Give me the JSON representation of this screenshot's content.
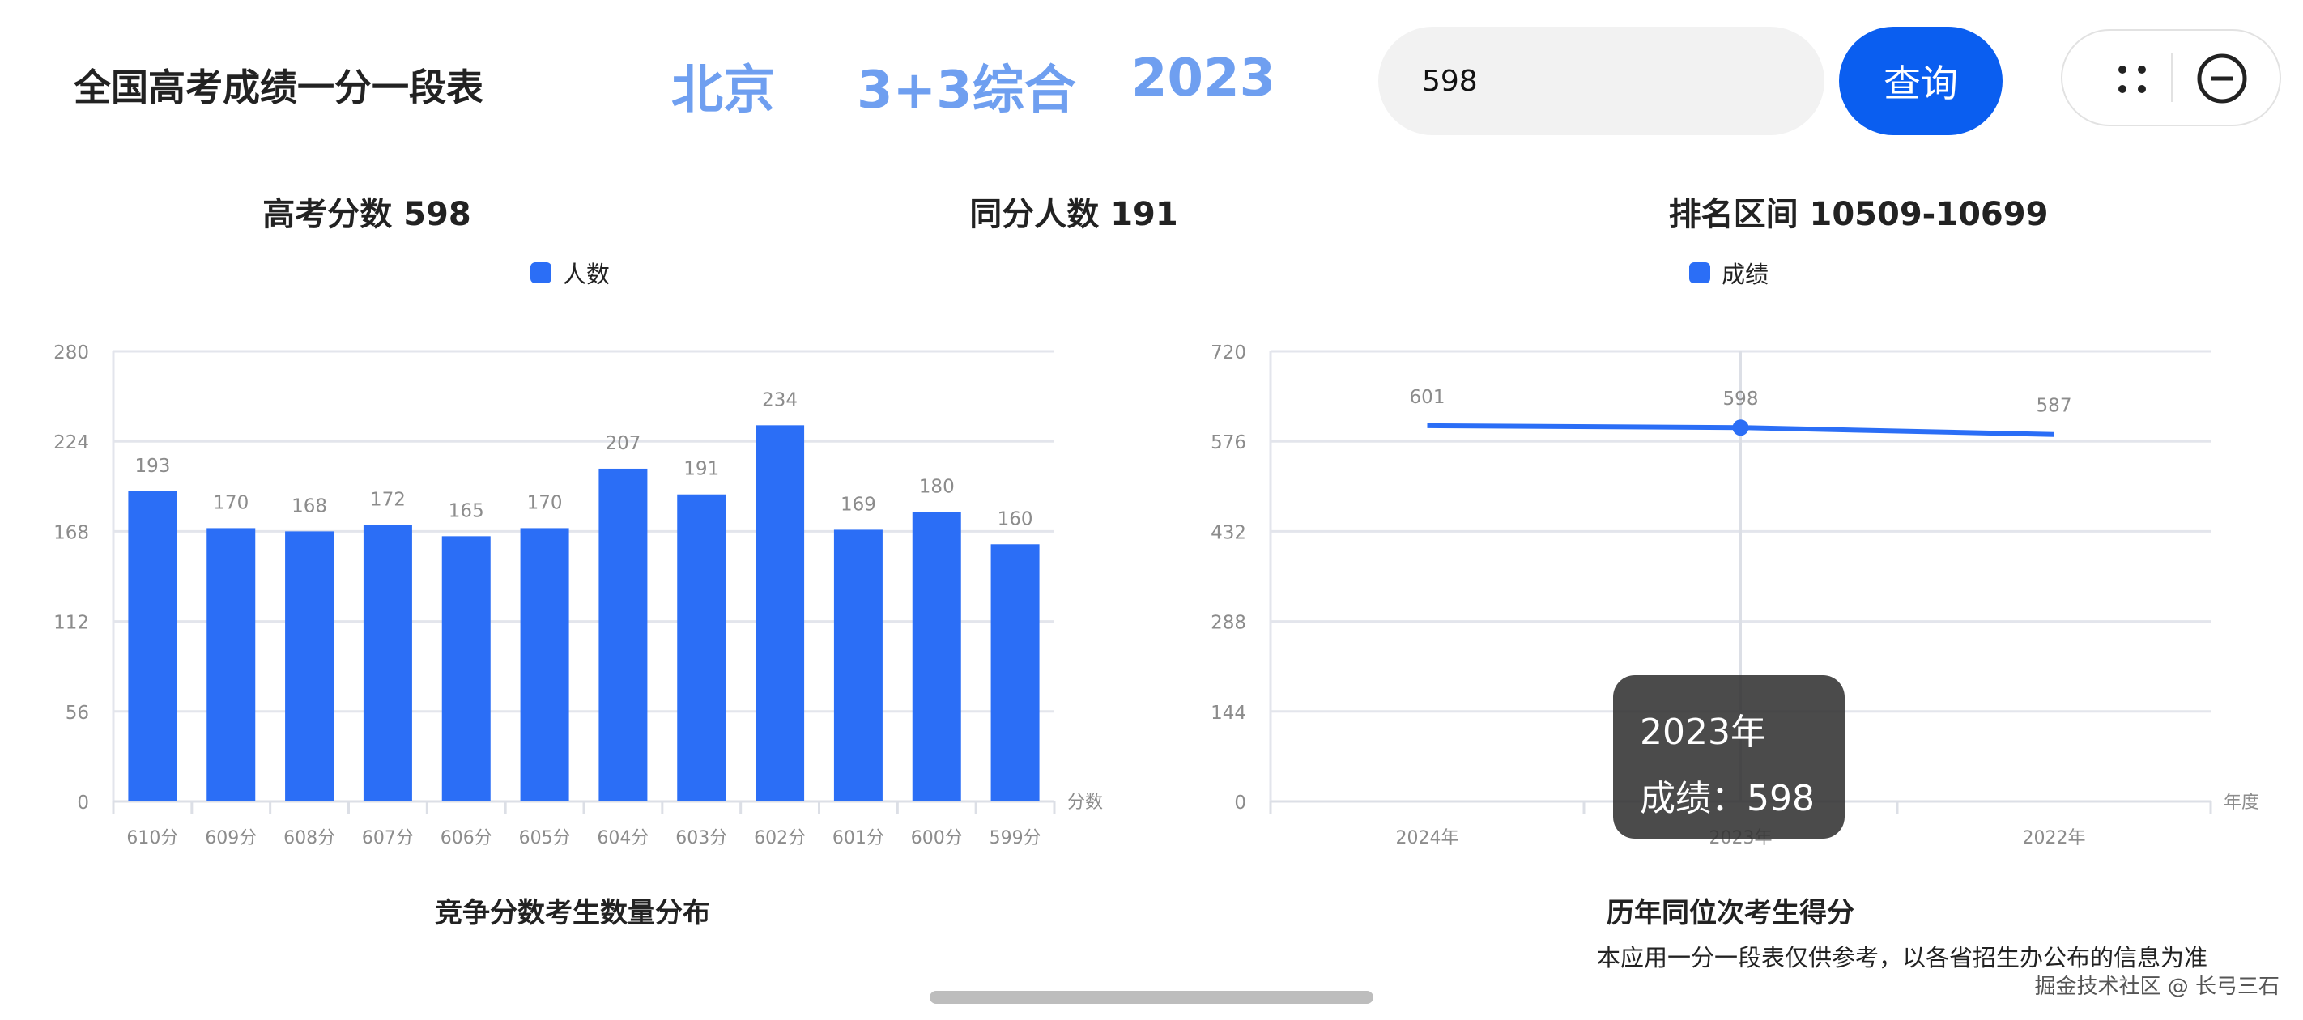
{
  "header": {
    "title": "全国高考成绩一分一段表",
    "filters": [
      "北京",
      "3+3综合",
      "2023"
    ],
    "search_value": "598",
    "query_label": "查询",
    "icons": [
      "more-dots-icon",
      "close-circle-icon"
    ]
  },
  "stats": {
    "score": "高考分数 598",
    "same_count": "同分人数 191",
    "rank_range": "排名区间 10509-10699"
  },
  "colors": {
    "accent": "#2b6ef6",
    "button": "#0a5ef0",
    "filter_text": "#6f9ff0"
  },
  "chart_data": [
    {
      "type": "bar",
      "title": "竞争分数考生数量分布",
      "legend": "人数",
      "legend_position": "top",
      "xlabel": "分数",
      "categories": [
        "610分",
        "609分",
        "608分",
        "607分",
        "606分",
        "605分",
        "604分",
        "603分",
        "602分",
        "601分",
        "600分",
        "599分"
      ],
      "series": [
        {
          "name": "人数",
          "values": [
            193,
            170,
            168,
            172,
            165,
            170,
            207,
            191,
            234,
            169,
            180,
            160
          ]
        }
      ],
      "yticks": [
        0,
        56,
        112,
        168,
        224,
        280
      ],
      "ylim": [
        0,
        280
      ],
      "grid": true,
      "color": "#2b6ef6"
    },
    {
      "type": "line",
      "title": "历年同位次考生得分",
      "legend": "成绩",
      "legend_position": "top",
      "xlabel": "年度",
      "categories": [
        "2024年",
        "2023年",
        "2022年"
      ],
      "series": [
        {
          "name": "成绩",
          "values": [
            601,
            598,
            587
          ]
        }
      ],
      "yticks": [
        0,
        144,
        288,
        432,
        576,
        720
      ],
      "ylim": [
        0,
        720
      ],
      "grid": true,
      "color": "#2b6ef6",
      "tooltip": {
        "title": "2023年",
        "label": "成绩：598",
        "category": "2023年"
      }
    }
  ],
  "footer": {
    "disclaimer": "本应用一分一段表仅供参考，以各省招生办公布的信息为准",
    "watermark": "掘金技术社区 @ 长弓三石"
  }
}
